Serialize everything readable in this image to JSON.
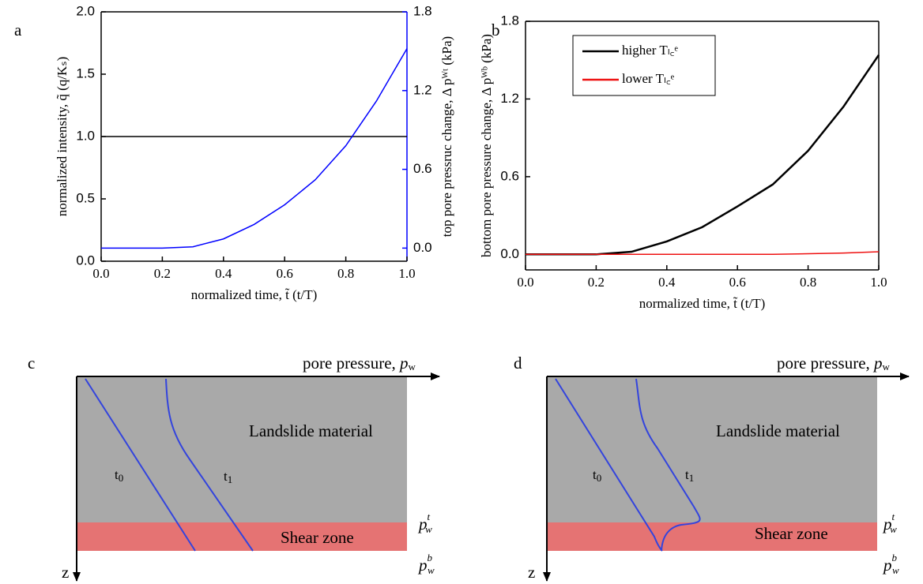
{
  "chart_data": [
    {
      "type": "line",
      "panel": "a",
      "xlabel": "normalized time, t̃ (t/T)",
      "ylabel": "normalized intensity, q̃ (q/Kₛ)",
      "y2label": "top pore pressruc change, Δ pᵂᵗ (kPa)",
      "x": [
        0,
        0.1,
        0.2,
        0.3,
        0.4,
        0.5,
        0.6,
        0.7,
        0.8,
        0.9,
        1.0
      ],
      "xlim": [
        0,
        1
      ],
      "xticks": [
        {
          "value": 0,
          "label": "0.0"
        },
        {
          "value": 0.2,
          "label": "0.2"
        },
        {
          "value": 0.4,
          "label": "0.4"
        },
        {
          "value": 0.6,
          "label": "0.6"
        },
        {
          "value": 0.8,
          "label": "0.8"
        },
        {
          "value": 1,
          "label": "1.0"
        }
      ],
      "ylim": [
        0,
        2
      ],
      "yticks": [
        {
          "value": 0,
          "label": "0.0"
        },
        0.5,
        {
          "value": 1,
          "label": "1.0"
        },
        1.5,
        {
          "value": 2,
          "label": "2.0"
        }
      ],
      "y2lim": [
        -0.1,
        1.8
      ],
      "y2ticks": [
        {
          "value": 0,
          "label": "0.0"
        },
        0.6,
        1.2,
        1.8
      ],
      "series": [
        {
          "color": "#000000",
          "values": [
            1,
            1,
            1,
            1,
            1,
            1,
            1,
            1,
            1,
            1,
            1
          ]
        },
        {
          "color": "#0000ff",
          "axis": "y2",
          "values": [
            0,
            0,
            0,
            0.01,
            0.07,
            0.18,
            0.33,
            0.52,
            0.78,
            1.12,
            1.52
          ]
        }
      ]
    },
    {
      "type": "line",
      "panel": "b",
      "xlabel": "normalized time, t̃ (t/T)",
      "ylabel": "bottom pore pressure change, Δ pᵂᵇ (kPa)",
      "x": [
        0,
        0.1,
        0.2,
        0.3,
        0.4,
        0.5,
        0.6,
        0.7,
        0.8,
        0.9,
        1.0
      ],
      "xlim": [
        0,
        1
      ],
      "xticks": [
        {
          "value": 0,
          "label": "0.0"
        },
        {
          "value": 0.2,
          "label": "0.2"
        },
        {
          "value": 0.4,
          "label": "0.4"
        },
        {
          "value": 0.6,
          "label": "0.6"
        },
        {
          "value": 0.8,
          "label": "0.8"
        },
        {
          "value": 1,
          "label": "1.0"
        }
      ],
      "ylim": [
        -0.12,
        1.8
      ],
      "yticks": [
        {
          "value": 0,
          "label": "0.0"
        },
        0.6,
        1.2,
        1.8
      ],
      "legend": "upper left",
      "series": [
        {
          "name": "higher Tₗ꜀ᵉ",
          "color": "#000000",
          "values": [
            0,
            0,
            0,
            0.02,
            0.1,
            0.21,
            0.37,
            0.54,
            0.8,
            1.14,
            1.54
          ]
        },
        {
          "name": "lower Tₗ꜀ᵉ",
          "color": "#ee1111",
          "values": [
            0,
            0,
            0,
            0,
            0,
            0,
            0,
            0,
            0.005,
            0.01,
            0.02
          ]
        }
      ]
    }
  ],
  "diagrams": [
    {
      "panel": "c",
      "axis": {
        "text": "pore pressure,",
        "var": "p",
        "sub": "w"
      },
      "z": "z",
      "material": "Landslide material",
      "shear_zone": "Shear zone",
      "t0": {
        "base": "t",
        "sub": "0"
      },
      "t1": {
        "base": "t",
        "sub": "1"
      },
      "top": {
        "base": "p",
        "sub": "w",
        "sup": "t"
      },
      "bottom": {
        "base": "p",
        "sub": "w",
        "sup": "b"
      }
    },
    {
      "panel": "d",
      "axis": {
        "text": "pore pressure,",
        "var": "p",
        "sub": "w"
      },
      "z": "z",
      "material": "Landslide material",
      "shear_zone": "Shear zone",
      "t0": {
        "base": "t",
        "sub": "0"
      },
      "t1": {
        "base": "t",
        "sub": "1"
      },
      "top": {
        "base": "p",
        "sub": "w",
        "sup": "t"
      },
      "bottom": {
        "base": "p",
        "sub": "w",
        "sup": "b"
      }
    }
  ]
}
